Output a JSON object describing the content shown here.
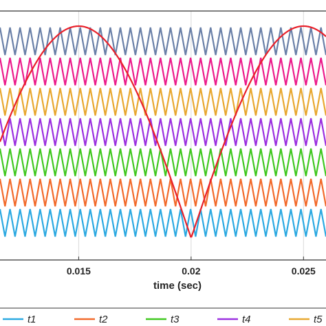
{
  "chart_data": {
    "type": "line",
    "title": "",
    "xlabel": "time (sec)",
    "ylabel": "",
    "x_tick_labels": [
      "0.015",
      "0.02",
      "0.025"
    ],
    "x_ticks": [
      0.015,
      0.02,
      0.025
    ],
    "xlim": [
      0.0115,
      0.026
    ],
    "ylim": [
      -1,
      1
    ],
    "grid": true,
    "legend_position": "bottom",
    "carriers": {
      "count": 7,
      "triangles_per_band": 32.5,
      "band_spacing": 1
    },
    "series": [
      {
        "name": "t1",
        "color": "#2ca9e1",
        "band": 0
      },
      {
        "name": "t2",
        "color": "#f26a2b",
        "band": 1
      },
      {
        "name": "t3",
        "color": "#40c820",
        "band": 2
      },
      {
        "name": "t4",
        "color": "#9b30e0",
        "band": 3
      },
      {
        "name": "t5",
        "color": "#e8a830",
        "band": 4
      },
      {
        "name": "",
        "color": "#ec1c8c",
        "band": 5
      },
      {
        "name": "",
        "color": "#6a80a8",
        "band": 6
      },
      {
        "name": "",
        "color": "#e8202a",
        "type": "reference",
        "shape": "abs-sine",
        "peaks": [
          0.015,
          0.025
        ],
        "zero": 0.02
      }
    ]
  }
}
